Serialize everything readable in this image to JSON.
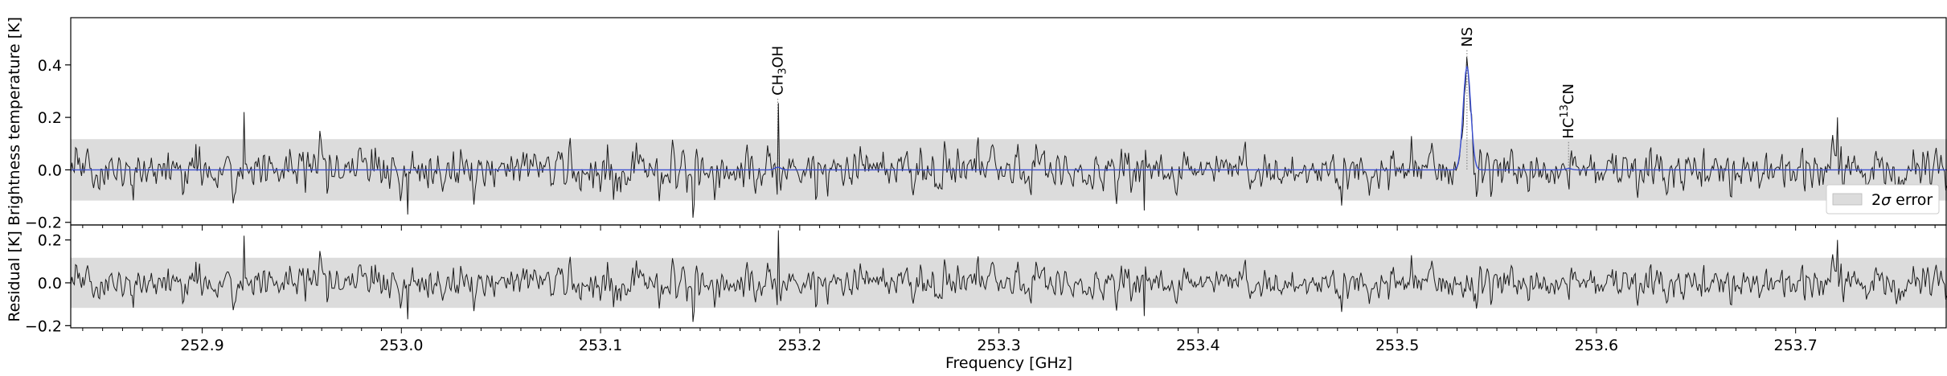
{
  "chart_data": [
    {
      "type": "line",
      "panel": "spectrum",
      "ylabel": "Brightness temperature [K]",
      "xlim": [
        252.834,
        253.776
      ],
      "ylim": [
        -0.21,
        0.58
      ],
      "yticks": [
        {
          "value": -0.2,
          "label": "−0.2"
        },
        {
          "value": 0.0,
          "label": "0.0"
        },
        {
          "value": 0.2,
          "label": "0.2"
        },
        {
          "value": 0.4,
          "label": "0.4"
        }
      ],
      "error_band": {
        "lower": -0.117,
        "upper": 0.117,
        "color": "#dcdcdc",
        "label_prefix": "2",
        "label_symbol": "σ",
        "label_suffix": " error"
      },
      "legend": {
        "location": "lower-right"
      },
      "series": [
        {
          "kind": "observed",
          "color": "#1a1a1a",
          "noise_rms": 0.058,
          "noise_seed": 7
        },
        {
          "kind": "model",
          "color": "#3b4fd1",
          "baseline": 0.0
        }
      ],
      "lines": [
        {
          "name": "CH",
          "sub": "3",
          "tail": "OH",
          "freq": 253.189,
          "peak_model": 0.01,
          "peak_observed": 0.245
        },
        {
          "name": "NS",
          "sub": "",
          "tail": "",
          "freq": 253.535,
          "peak_model": 0.395,
          "peak_observed": 0.43,
          "width_ghz": 0.0019
        },
        {
          "name": "HC",
          "sup": "13",
          "tail": "CN",
          "freq": 253.586,
          "peak_model": 0.005,
          "peak_observed": 0.08
        }
      ],
      "observed_highlights": [
        {
          "x": 252.921,
          "y": 0.22
        },
        {
          "x": 253.189,
          "y": 0.245
        },
        {
          "x": 253.721,
          "y": 0.2
        },
        {
          "x": 253.003,
          "y": -0.17
        },
        {
          "x": 253.373,
          "y": -0.155
        }
      ]
    },
    {
      "type": "line",
      "panel": "residual",
      "xlabel": "Frequency [GHz]",
      "ylabel": "Residual [K]",
      "xlim": [
        252.834,
        253.776
      ],
      "ylim": [
        -0.21,
        0.27
      ],
      "xticks": [
        {
          "value": 252.9,
          "label": "252.9"
        },
        {
          "value": 253.0,
          "label": "253.0"
        },
        {
          "value": 253.1,
          "label": "253.1"
        },
        {
          "value": 253.2,
          "label": "253.2"
        },
        {
          "value": 253.3,
          "label": "253.3"
        },
        {
          "value": 253.4,
          "label": "253.4"
        },
        {
          "value": 253.5,
          "label": "253.5"
        },
        {
          "value": 253.6,
          "label": "253.6"
        },
        {
          "value": 253.7,
          "label": "253.7"
        }
      ],
      "yticks": [
        {
          "value": -0.2,
          "label": "−0.2"
        },
        {
          "value": 0.0,
          "label": "0.0"
        },
        {
          "value": 0.2,
          "label": "0.2"
        }
      ],
      "error_band": {
        "lower": -0.117,
        "upper": 0.117,
        "color": "#dcdcdc"
      },
      "series": [
        {
          "kind": "residual",
          "color": "#1a1a1a"
        }
      ]
    }
  ]
}
